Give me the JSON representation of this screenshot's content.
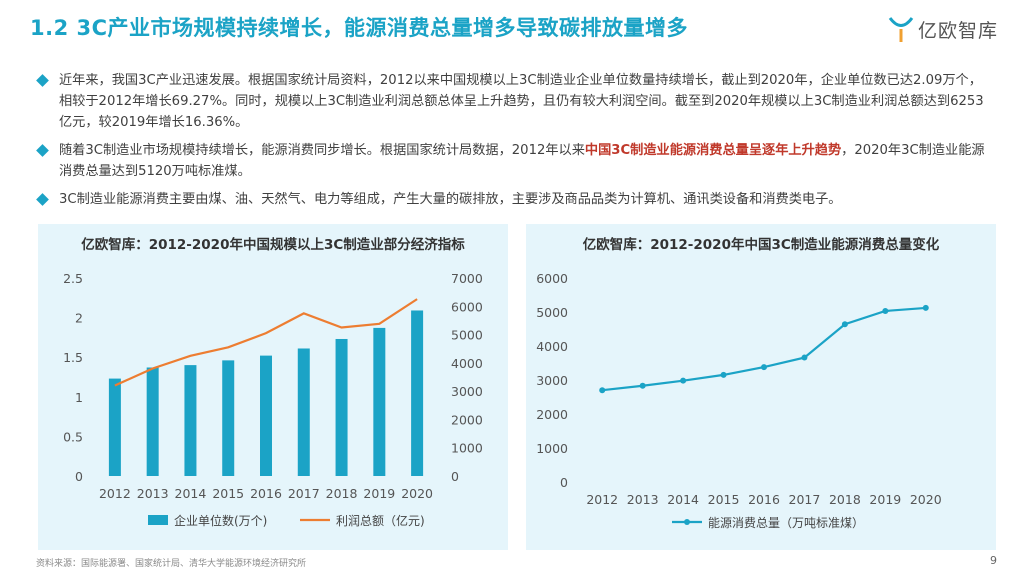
{
  "header": {
    "title": "1.2 3C产业市场规模持续增长，能源消费总量增多导致碳排放量增多",
    "logo_text": "亿欧智库"
  },
  "bullets": [
    {
      "text": "近年来，我国3C产业迅速发展。根据国家统计局资料，2012以来中国规模以上3C制造业企业单位数量持续增长，截止到2020年，企业单位数已达2.09万个，相较于2012年增长69.27%。同时，规模以上3C制造业利润总额总体呈上升趋势，且仍有较大利润空间。截至到2020年规模以上3C制造业利润总额达到6253亿元，较2019年增长16.36%。"
    },
    {
      "text_before": "随着3C制造业市场规模持续增长，能源消费同步增长。根据国家统计局数据，2012年以来",
      "text_highlight": "中国3C制造业能源消费总量呈逐年上升趋势",
      "text_after": "，2020年3C制造业能源消费总量达到5120万吨标准煤。"
    },
    {
      "text": "3C制造业能源消费主要由煤、油、天然气、电力等组成，产生大量的碳排放，主要涉及商品品类为计算机、通讯类设备和消费类电子。"
    }
  ],
  "colors": {
    "accent": "#1ba3c6",
    "bar": "#1ba3c6",
    "line_orange": "#ed7d31",
    "highlight": "#c0392b",
    "panel_bg": "#e5f5fb"
  },
  "chart_data": [
    {
      "type": "bar",
      "title": "亿欧智库：2012-2020年中国规模以上3C制造业部分经济指标",
      "categories": [
        "2012",
        "2013",
        "2014",
        "2015",
        "2016",
        "2017",
        "2018",
        "2019",
        "2020"
      ],
      "y_left_ticks": [
        "0",
        "0.5",
        "1",
        "1.5",
        "2",
        "2.5"
      ],
      "y_right_ticks": [
        "0",
        "1000",
        "2000",
        "3000",
        "4000",
        "5000",
        "6000",
        "7000"
      ],
      "ylim_left": [
        0,
        2.5
      ],
      "ylim_right": [
        0,
        7000
      ],
      "series": [
        {
          "name": "企业单位数(万个)",
          "type": "bar",
          "axis": "left",
          "values": [
            1.23,
            1.37,
            1.4,
            1.46,
            1.52,
            1.61,
            1.73,
            1.87,
            2.09
          ]
        },
        {
          "name": "利润总额（亿元)",
          "type": "line",
          "axis": "right",
          "values": [
            3200,
            3800,
            4250,
            4550,
            5050,
            5750,
            5250,
            5380,
            6253
          ]
        }
      ],
      "legend_position": "bottom"
    },
    {
      "type": "line",
      "title": "亿欧智库：2012-2020年中国3C制造业能源消费总量变化",
      "categories": [
        "2012",
        "2013",
        "2014",
        "2015",
        "2016",
        "2017",
        "2018",
        "2019",
        "2020"
      ],
      "y_ticks": [
        "0",
        "1000",
        "2000",
        "3000",
        "4000",
        "5000",
        "6000"
      ],
      "ylim": [
        0,
        6000
      ],
      "series": [
        {
          "name": "能源消费总量（万吨标准煤）",
          "values": [
            2700,
            2830,
            2980,
            3150,
            3380,
            3660,
            4640,
            5030,
            5120
          ]
        }
      ],
      "legend_position": "bottom"
    }
  ],
  "footer": {
    "source": "资料来源：国际能源署、国家统计局、清华大学能源环境经济研究所",
    "page_number": "9"
  }
}
